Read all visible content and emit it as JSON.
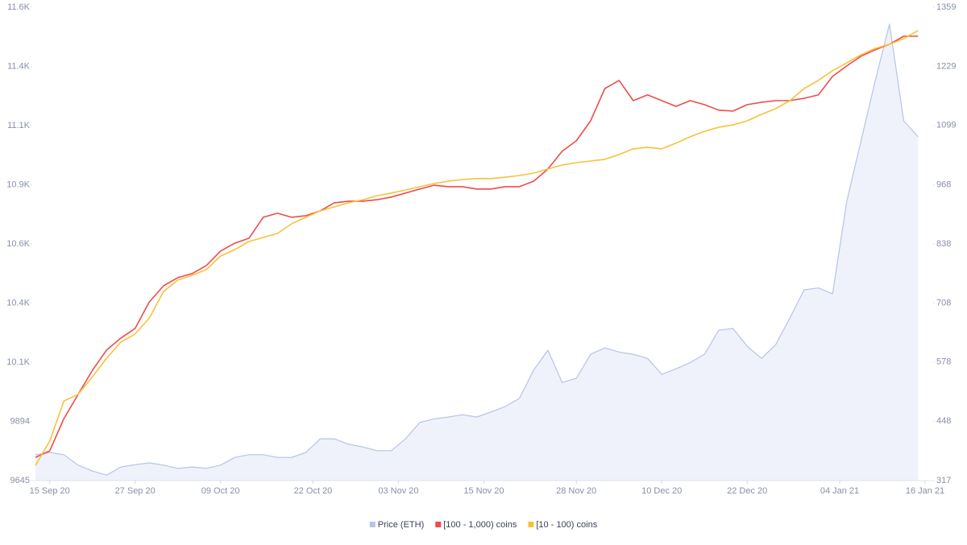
{
  "chart_data": {
    "type": "line",
    "x": [
      "2020-09-13",
      "2020-09-15",
      "2020-09-17",
      "2020-09-19",
      "2020-09-21",
      "2020-09-23",
      "2020-09-25",
      "2020-09-27",
      "2020-09-29",
      "2020-10-01",
      "2020-10-03",
      "2020-10-05",
      "2020-10-07",
      "2020-10-09",
      "2020-10-11",
      "2020-10-13",
      "2020-10-15",
      "2020-10-17",
      "2020-10-19",
      "2020-10-21",
      "2020-10-23",
      "2020-10-25",
      "2020-10-27",
      "2020-10-29",
      "2020-10-31",
      "2020-11-02",
      "2020-11-04",
      "2020-11-06",
      "2020-11-08",
      "2020-11-10",
      "2020-11-12",
      "2020-11-14",
      "2020-11-16",
      "2020-11-18",
      "2020-11-20",
      "2020-11-22",
      "2020-11-24",
      "2020-11-26",
      "2020-11-28",
      "2020-11-30",
      "2020-12-02",
      "2020-12-04",
      "2020-12-06",
      "2020-12-08",
      "2020-12-10",
      "2020-12-12",
      "2020-12-14",
      "2020-12-16",
      "2020-12-18",
      "2020-12-20",
      "2020-12-22",
      "2020-12-24",
      "2020-12-26",
      "2020-12-28",
      "2020-12-30",
      "2021-01-01",
      "2021-01-03",
      "2021-01-05",
      "2021-01-07",
      "2021-01-09",
      "2021-01-11",
      "2021-01-13",
      "2021-01-15"
    ],
    "xlim": [
      "2020-09-13",
      "2021-01-16"
    ],
    "xticks": [
      {
        "value": "2020-09-15",
        "label": "15 Sep 20"
      },
      {
        "value": "2020-09-27",
        "label": "27 Sep 20"
      },
      {
        "value": "2020-10-09",
        "label": "09 Oct 20"
      },
      {
        "value": "2020-10-22",
        "label": "22 Oct 20"
      },
      {
        "value": "2020-11-03",
        "label": "03 Nov 20"
      },
      {
        "value": "2020-11-15",
        "label": "15 Nov 20"
      },
      {
        "value": "2020-11-28",
        "label": "28 Nov 20"
      },
      {
        "value": "2020-12-10",
        "label": "10 Dec 20"
      },
      {
        "value": "2020-12-22",
        "label": "22 Dec 20"
      },
      {
        "value": "2021-01-04",
        "label": "04 Jan 21"
      },
      {
        "value": "2021-01-16",
        "label": "16 Jan 21"
      }
    ],
    "ylim": [
      9645,
      11637
    ],
    "yticks": [
      9645,
      9894,
      {
        "value": 10143,
        "label": "10.1K"
      },
      {
        "value": 10392,
        "label": "10.4K"
      },
      {
        "value": 10641,
        "label": "10.6K"
      },
      {
        "value": 10890,
        "label": "10.9K"
      },
      {
        "value": 11139,
        "label": "11.1K"
      },
      {
        "value": 11388,
        "label": "11.4K"
      },
      {
        "value": 11637,
        "label": "11.6K"
      }
    ],
    "y2lim": [
      317,
      1359
    ],
    "y2ticks": [
      317,
      448,
      578,
      708,
      838,
      968,
      1099,
      1229,
      1359
    ],
    "legend": "bottom",
    "series": [
      {
        "name": "Price (ETH)",
        "color": "#b7c3e8",
        "axis": "y2",
        "area": true,
        "values": [
          374,
          379,
          374,
          351,
          338,
          329,
          347,
          352,
          356,
          351,
          344,
          347,
          344,
          351,
          368,
          374,
          374,
          368,
          368,
          379,
          409,
          409,
          397,
          391,
          383,
          383,
          409,
          445,
          453,
          457,
          462,
          457,
          468,
          480,
          498,
          560,
          604,
          533,
          542,
          595,
          609,
          600,
          595,
          586,
          551,
          563,
          577,
          595,
          648,
          652,
          613,
          586,
          616,
          675,
          737,
          741,
          728,
          932,
          1065,
          1198,
          1322,
          1109,
          1074
        ]
      },
      {
        "name": "[100 - 1,000) coins",
        "color": "#f04b4b",
        "values": [
          9743,
          9770,
          9906,
          10008,
          10109,
          10194,
          10245,
          10285,
          10397,
          10465,
          10499,
          10516,
          10550,
          10611,
          10644,
          10665,
          10753,
          10770,
          10753,
          10760,
          10780,
          10814,
          10821,
          10821,
          10827,
          10838,
          10855,
          10872,
          10888,
          10882,
          10882,
          10872,
          10872,
          10882,
          10882,
          10905,
          10956,
          11031,
          11075,
          11159,
          11295,
          11329,
          11244,
          11268,
          11244,
          11220,
          11244,
          11227,
          11204,
          11200,
          11227,
          11237,
          11244,
          11244,
          11254,
          11268,
          11346,
          11390,
          11431,
          11458,
          11481,
          11515,
          11515
        ]
      },
      {
        "name": "[10 - 100) coins",
        "color": "#f7c23a",
        "values": [
          9709,
          9811,
          9980,
          10008,
          10082,
          10160,
          10228,
          10262,
          10329,
          10441,
          10489,
          10509,
          10533,
          10590,
          10617,
          10651,
          10668,
          10685,
          10726,
          10753,
          10780,
          10797,
          10814,
          10827,
          10844,
          10855,
          10868,
          10882,
          10895,
          10905,
          10912,
          10916,
          10916,
          10922,
          10929,
          10939,
          10956,
          10973,
          10983,
          10990,
          10997,
          11017,
          11041,
          11048,
          11041,
          11065,
          11092,
          11115,
          11132,
          11142,
          11159,
          11186,
          11210,
          11244,
          11295,
          11329,
          11370,
          11403,
          11437,
          11464,
          11481,
          11505,
          11539
        ]
      }
    ]
  }
}
